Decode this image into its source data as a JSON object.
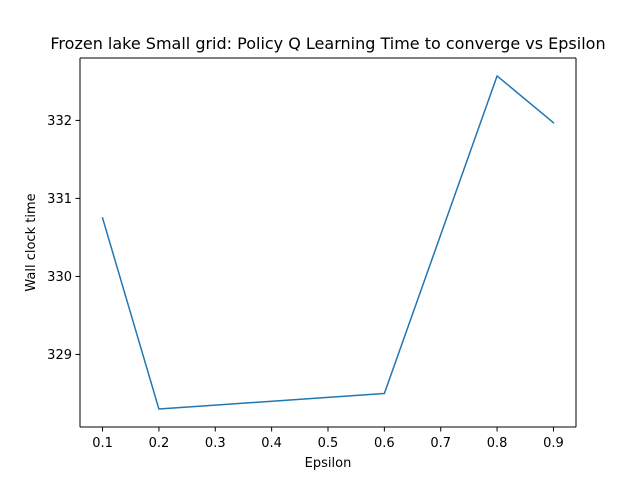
{
  "chart_data": {
    "type": "line",
    "title": "Frozen lake Small grid: Policy Q Learning Time to converge vs Epsilon",
    "xlabel": "Epsilon",
    "ylabel": "Wall clock time",
    "x": [
      0.1,
      0.2,
      0.6,
      0.8,
      0.9
    ],
    "series": [
      {
        "values": [
          330.75,
          328.3,
          328.5,
          332.57,
          331.97
        ],
        "color": "#1f77b4"
      }
    ],
    "xlim": [
      0.06,
      0.94
    ],
    "ylim": [
      328.07,
      332.8
    ],
    "xticks": [
      "0.1",
      "0.2",
      "0.3",
      "0.4",
      "0.5",
      "0.6",
      "0.7",
      "0.8",
      "0.9"
    ],
    "yticks": [
      "329",
      "330",
      "331",
      "332"
    ],
    "grid": false,
    "legend": "none"
  }
}
